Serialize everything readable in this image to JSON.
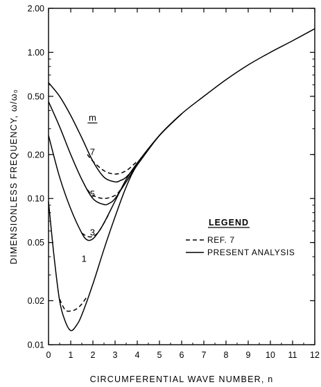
{
  "chart_data": {
    "type": "line",
    "title": "",
    "xlabel": "CIRCUMFERENTIAL WAVE NUMBER, n",
    "ylabel": "DIMENSIONLESS FREQUENCY, ω/ω₀",
    "xlim": [
      0,
      12
    ],
    "ylim": [
      0.01,
      2.0
    ],
    "yscale": "log",
    "grid": false,
    "x_ticks": [
      "0",
      "1",
      "2",
      "3",
      "4",
      "5",
      "6",
      "7",
      "8",
      "9",
      "10",
      "11",
      "12"
    ],
    "x_tick_values": [
      0,
      1,
      2,
      3,
      4,
      5,
      6,
      7,
      8,
      9,
      10,
      11,
      12
    ],
    "y_ticks": [
      "0.01",
      "0.02",
      "0.05",
      "0.10",
      "0.20",
      "0.50",
      "1.00",
      "2.00"
    ],
    "y_tick_values": [
      0.01,
      0.02,
      0.05,
      0.1,
      0.2,
      0.5,
      1.0,
      2.0
    ],
    "curve_parameter_label": "m",
    "legend": {
      "title": "LEGEND",
      "placement": "right",
      "entries": [
        {
          "label": "REF. 7",
          "style": "dashed"
        },
        {
          "label": "PRESENT ANALYSIS",
          "style": "solid"
        }
      ]
    },
    "series": [
      {
        "m": "1",
        "style": "solid",
        "x": [
          0,
          0.25,
          0.5,
          0.75,
          1,
          1.25,
          1.5,
          2,
          2.5,
          3,
          3.5,
          4,
          5,
          6
        ],
        "y": [
          0.095,
          0.04,
          0.02,
          0.0145,
          0.0125,
          0.0135,
          0.016,
          0.026,
          0.045,
          0.075,
          0.12,
          0.17,
          0.27,
          0.38
        ]
      },
      {
        "m": "1",
        "style": "dashed",
        "x": [
          0.5,
          0.75,
          1,
          1.25,
          1.5,
          1.75
        ],
        "y": [
          0.0205,
          0.0173,
          0.017,
          0.0175,
          0.019,
          0.0215
        ]
      },
      {
        "m": "3",
        "style": "solid",
        "x": [
          0,
          0.5,
          1,
          1.5,
          1.75,
          2,
          2.25,
          2.5,
          3,
          3.5,
          4,
          5,
          6
        ],
        "y": [
          0.27,
          0.14,
          0.085,
          0.058,
          0.052,
          0.053,
          0.059,
          0.068,
          0.096,
          0.135,
          0.175,
          0.27,
          0.38
        ]
      },
      {
        "m": "3",
        "style": "dashed",
        "x": [
          1.5,
          1.75,
          2,
          2.25,
          2.5,
          2.75
        ],
        "y": [
          0.058,
          0.055,
          0.055,
          0.059,
          0.068,
          0.08
        ]
      },
      {
        "m": "5",
        "style": "solid",
        "x": [
          0,
          0.5,
          1,
          1.5,
          2,
          2.5,
          2.75,
          3,
          3.5,
          4,
          5,
          6
        ],
        "y": [
          0.46,
          0.31,
          0.2,
          0.135,
          0.1,
          0.091,
          0.093,
          0.1,
          0.13,
          0.17,
          0.27,
          0.38
        ]
      },
      {
        "m": "5",
        "style": "dashed",
        "x": [
          1.75,
          2,
          2.5,
          3,
          3.25
        ],
        "y": [
          0.115,
          0.105,
          0.1,
          0.105,
          0.115
        ]
      },
      {
        "m": "7",
        "style": "solid",
        "x": [
          0,
          0.5,
          1,
          1.5,
          2,
          2.5,
          3,
          3.25,
          3.5,
          4,
          5,
          6,
          7,
          8,
          9,
          10,
          11,
          12
        ],
        "y": [
          0.62,
          0.5,
          0.37,
          0.26,
          0.18,
          0.14,
          0.13,
          0.133,
          0.14,
          0.17,
          0.27,
          0.38,
          0.5,
          0.65,
          0.82,
          1.0,
          1.2,
          1.45
        ]
      },
      {
        "m": "7",
        "style": "dashed",
        "x": [
          1.75,
          2,
          2.5,
          3,
          3.5,
          4
        ],
        "y": [
          0.2,
          0.18,
          0.155,
          0.147,
          0.155,
          0.18
        ]
      }
    ],
    "curve_labels": [
      {
        "text": "7",
        "x": 1.98,
        "y": 0.21
      },
      {
        "text": "5",
        "x": 1.98,
        "y": 0.108
      },
      {
        "text": "3",
        "x": 1.98,
        "y": 0.059
      },
      {
        "text": "1",
        "x": 1.6,
        "y": 0.039
      }
    ]
  }
}
